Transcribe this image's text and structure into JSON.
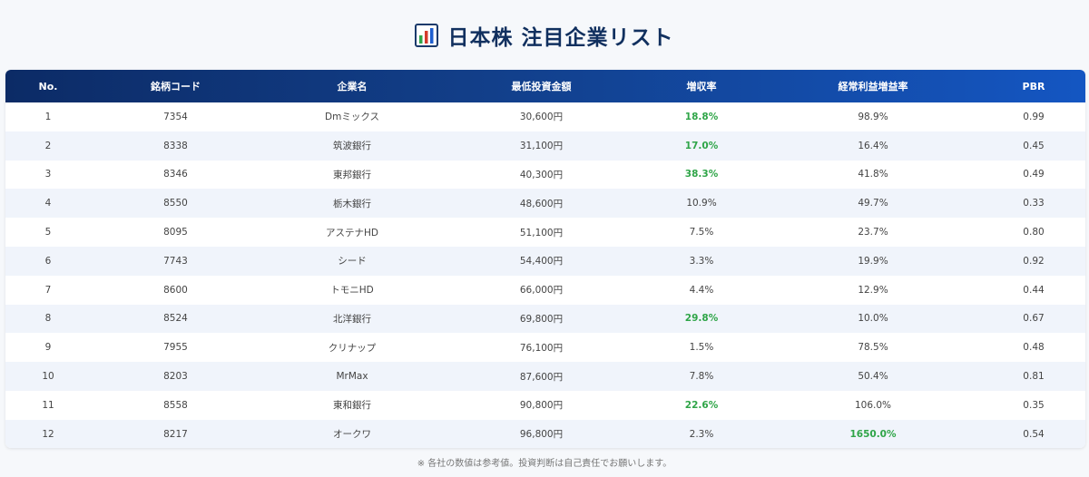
{
  "title": "日本株 注目企業リスト",
  "table": {
    "headers": [
      "No.",
      "銘柄コード",
      "企業名",
      "最低投資金額",
      "増収率",
      "経常利益増益率",
      "PBR"
    ],
    "rows": [
      {
        "no": "1",
        "code": "7354",
        "name": "Dmミックス",
        "min_invest": "30,600円",
        "revenue_growth": "18.8%",
        "revenue_hl": true,
        "profit_growth": "98.9%",
        "profit_hl": false,
        "pbr": "0.99"
      },
      {
        "no": "2",
        "code": "8338",
        "name": "筑波銀行",
        "min_invest": "31,100円",
        "revenue_growth": "17.0%",
        "revenue_hl": true,
        "profit_growth": "16.4%",
        "profit_hl": false,
        "pbr": "0.45"
      },
      {
        "no": "3",
        "code": "8346",
        "name": "東邦銀行",
        "min_invest": "40,300円",
        "revenue_growth": "38.3%",
        "revenue_hl": true,
        "profit_growth": "41.8%",
        "profit_hl": false,
        "pbr": "0.49"
      },
      {
        "no": "4",
        "code": "8550",
        "name": "栃木銀行",
        "min_invest": "48,600円",
        "revenue_growth": "10.9%",
        "revenue_hl": false,
        "profit_growth": "49.7%",
        "profit_hl": false,
        "pbr": "0.33"
      },
      {
        "no": "5",
        "code": "8095",
        "name": "アステナHD",
        "min_invest": "51,100円",
        "revenue_growth": "7.5%",
        "revenue_hl": false,
        "profit_growth": "23.7%",
        "profit_hl": false,
        "pbr": "0.80"
      },
      {
        "no": "6",
        "code": "7743",
        "name": "シード",
        "min_invest": "54,400円",
        "revenue_growth": "3.3%",
        "revenue_hl": false,
        "profit_growth": "19.9%",
        "profit_hl": false,
        "pbr": "0.92"
      },
      {
        "no": "7",
        "code": "8600",
        "name": "トモニHD",
        "min_invest": "66,000円",
        "revenue_growth": "4.4%",
        "revenue_hl": false,
        "profit_growth": "12.9%",
        "profit_hl": false,
        "pbr": "0.44"
      },
      {
        "no": "8",
        "code": "8524",
        "name": "北洋銀行",
        "min_invest": "69,800円",
        "revenue_growth": "29.8%",
        "revenue_hl": true,
        "profit_growth": "10.0%",
        "profit_hl": false,
        "pbr": "0.67"
      },
      {
        "no": "9",
        "code": "7955",
        "name": "クリナップ",
        "min_invest": "76,100円",
        "revenue_growth": "1.5%",
        "revenue_hl": false,
        "profit_growth": "78.5%",
        "profit_hl": false,
        "pbr": "0.48"
      },
      {
        "no": "10",
        "code": "8203",
        "name": "MrMax",
        "min_invest": "87,600円",
        "revenue_growth": "7.8%",
        "revenue_hl": false,
        "profit_growth": "50.4%",
        "profit_hl": false,
        "pbr": "0.81"
      },
      {
        "no": "11",
        "code": "8558",
        "name": "東和銀行",
        "min_invest": "90,800円",
        "revenue_growth": "22.6%",
        "revenue_hl": true,
        "profit_growth": "106.0%",
        "profit_hl": false,
        "pbr": "0.35"
      },
      {
        "no": "12",
        "code": "8217",
        "name": "オークワ",
        "min_invest": "96,800円",
        "revenue_growth": "2.3%",
        "revenue_hl": false,
        "profit_growth": "1650.0%",
        "profit_hl": true,
        "pbr": "0.54"
      }
    ]
  },
  "footnote": "※ 各社の数値は参考値。投資判断は自己責任でお願いします。",
  "colors": {
    "title": "#11305f",
    "header_start": "#0c2b66",
    "header_end": "#1456c2",
    "highlight_green": "#2fa548",
    "row_alt": "#f0f4fb"
  },
  "icons": {
    "title_icon": "bar-chart-icon"
  }
}
